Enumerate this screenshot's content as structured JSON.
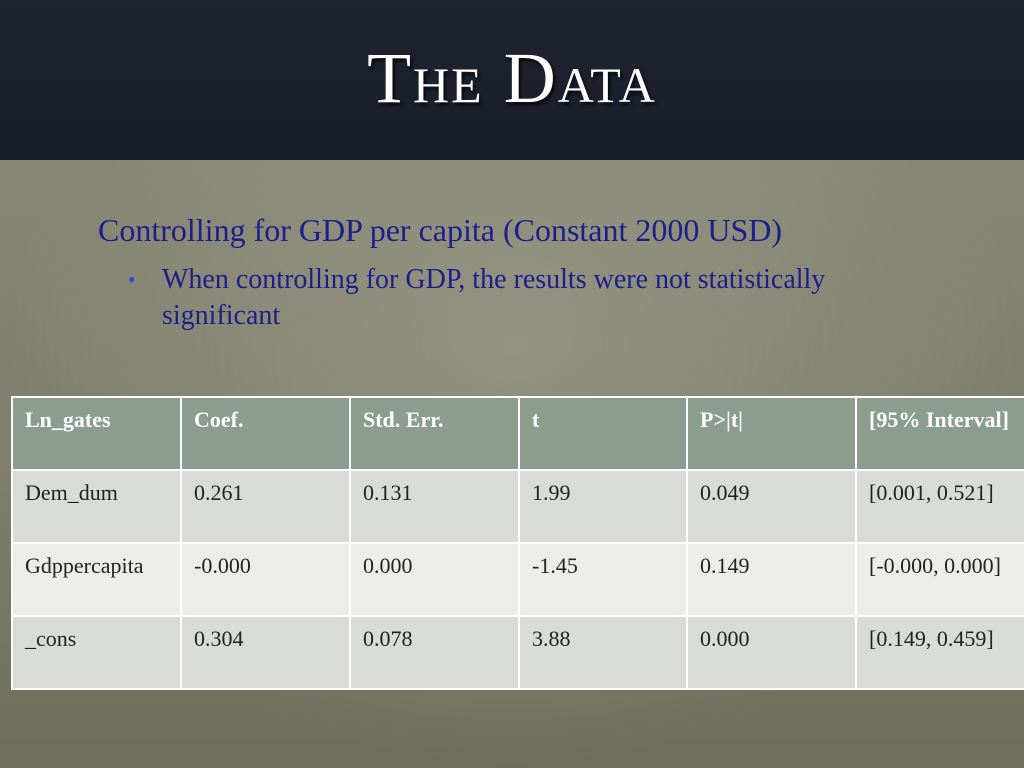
{
  "slide": {
    "title": "The Data",
    "subtitle": "Controlling for GDP per capita (Constant 2000 USD)",
    "bullet": "When controlling for GDP, the results were not statistically significant"
  },
  "table": {
    "headers": [
      "Ln_gates",
      "Coef.",
      "Std. Err.",
      "t",
      "P>|t|",
      "[95% Interval]"
    ],
    "rows": [
      [
        "Dem_dum",
        "0.261",
        "0.131",
        "1.99",
        "0.049",
        "[0.001, 0.521]"
      ],
      [
        "Gdppercapita",
        "-0.000",
        "0.000",
        "-1.45",
        "0.149",
        "[-0.000, 0.000]"
      ],
      [
        "_cons",
        "0.304",
        "0.078",
        "3.88",
        "0.000",
        "[0.149, 0.459]"
      ]
    ]
  },
  "colors": {
    "title_bar": "#1f2330",
    "header_fill": "#8c9d90",
    "text_blue": "#1b1f8a",
    "bullet_blue": "#3b46d8"
  }
}
